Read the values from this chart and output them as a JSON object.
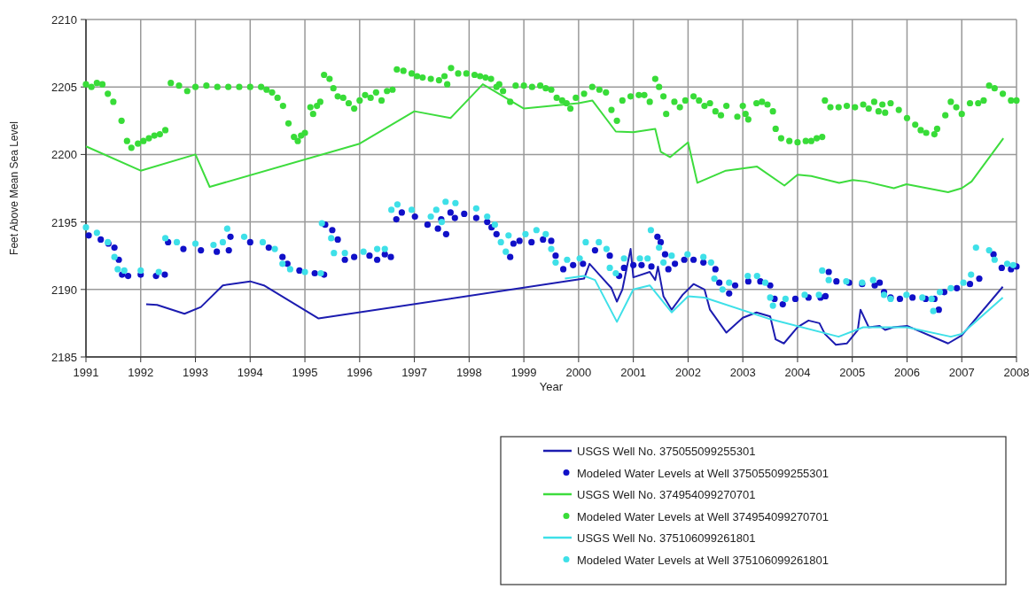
{
  "chart_data": {
    "type": "line",
    "xlabel": "Year",
    "ylabel": "Feet Above Mean Sea Level",
    "xlim": [
      1991,
      2008
    ],
    "xticks": [
      1991,
      1992,
      1993,
      1994,
      1995,
      1996,
      1997,
      1998,
      1999,
      2000,
      2001,
      2002,
      2003,
      2004,
      2005,
      2006,
      2007,
      2008
    ],
    "ylim": [
      2185,
      2210
    ],
    "yticks": [
      2185,
      2190,
      2195,
      2200,
      2205,
      2210
    ],
    "grid": true,
    "legend": "bottom",
    "series": [
      {
        "name": "USGS Well No. 375055099255301",
        "type": "line",
        "color": "#1c1cb0",
        "marker": "none",
        "x": [
          1992.1,
          1992.3,
          1992.8,
          1993.1,
          1993.5,
          1994.0,
          1994.25,
          1995.25,
          2000.1,
          2000.2,
          2000.4,
          2000.6,
          2000.7,
          2000.8,
          2000.95,
          2001.0,
          2001.3,
          2001.4,
          2001.45,
          2001.55,
          2001.7,
          2001.9,
          2002.1,
          2002.3,
          2002.4,
          2002.7,
          2003.0,
          2003.25,
          2003.5,
          2003.6,
          2003.75,
          2004.0,
          2004.2,
          2004.4,
          2004.5,
          2004.7,
          2004.9,
          2005.1,
          2005.15,
          2005.3,
          2005.5,
          2005.6,
          2005.75,
          2006.0,
          2006.75,
          2007.0,
          2007.75
        ],
        "values": [
          2188.9,
          2188.85,
          2188.2,
          2188.7,
          2190.3,
          2190.6,
          2190.3,
          2187.85,
          2190.8,
          2191.9,
          2191.0,
          2190.1,
          2189.1,
          2190.0,
          2193.0,
          2190.9,
          2191.3,
          2190.7,
          2191.7,
          2189.5,
          2188.5,
          2189.6,
          2190.4,
          2190.0,
          2188.5,
          2186.8,
          2187.9,
          2188.3,
          2188.0,
          2186.3,
          2186.0,
          2187.2,
          2187.7,
          2187.5,
          2186.7,
          2185.9,
          2186.0,
          2187.0,
          2188.5,
          2187.2,
          2187.3,
          2187.0,
          2187.2,
          2187.3,
          2186.0,
          2186.6,
          2190.2
        ]
      },
      {
        "name": "Modeled Water Levels at Well 375055099255301",
        "type": "scatter",
        "color": "#1010c8",
        "marker": "circle",
        "x": [
          1991.05,
          1991.27,
          1991.41,
          1991.52,
          1991.6,
          1991.66,
          1991.77,
          1992.0,
          1992.28,
          1992.44,
          1992.5,
          1992.78,
          1993.1,
          1993.39,
          1993.61,
          1993.64,
          1994.0,
          1994.34,
          1994.59,
          1994.68,
          1994.9,
          1995.18,
          1995.35,
          1995.37,
          1995.5,
          1995.6,
          1995.73,
          1995.9,
          1996.18,
          1996.32,
          1996.46,
          1996.57,
          1996.67,
          1996.77,
          1997.01,
          1997.24,
          1997.43,
          1997.49,
          1997.58,
          1997.66,
          1997.74,
          1997.91,
          1998.13,
          1998.33,
          1998.41,
          1998.5,
          1998.75,
          1998.81,
          1998.92,
          1999.14,
          1999.35,
          1999.5,
          1999.58,
          1999.72,
          1999.9,
          2000.08,
          2000.3,
          2000.57,
          2000.74,
          2000.83,
          2001.0,
          2001.15,
          2001.33,
          2001.44,
          2001.5,
          2001.58,
          2001.64,
          2001.76,
          2001.93,
          2002.1,
          2002.28,
          2002.5,
          2002.57,
          2002.75,
          2002.86,
          2003.1,
          2003.32,
          2003.5,
          2003.58,
          2003.73,
          2003.96,
          2004.2,
          2004.42,
          2004.51,
          2004.57,
          2004.71,
          2004.94,
          2005.18,
          2005.41,
          2005.5,
          2005.58,
          2005.7,
          2005.87,
          2006.1,
          2006.34,
          2006.5,
          2006.58,
          2006.68,
          2006.91,
          2007.15,
          2007.32,
          2007.58,
          2007.73,
          2007.9,
          2008.0
        ],
        "values": [
          2194.0,
          2193.7,
          2193.4,
          2193.1,
          2192.2,
          2191.1,
          2191.0,
          2191.1,
          2191.0,
          2191.1,
          2193.5,
          2193.0,
          2192.9,
          2192.8,
          2192.9,
          2193.9,
          2193.5,
          2193.1,
          2192.4,
          2191.9,
          2191.4,
          2191.2,
          2191.1,
          2194.8,
          2194.4,
          2193.7,
          2192.2,
          2192.4,
          2192.5,
          2192.2,
          2192.6,
          2192.4,
          2195.2,
          2195.7,
          2195.4,
          2194.8,
          2194.5,
          2195.2,
          2194.1,
          2195.7,
          2195.3,
          2195.6,
          2195.3,
          2195.0,
          2194.6,
          2194.1,
          2192.4,
          2193.4,
          2193.6,
          2193.5,
          2193.7,
          2193.6,
          2192.5,
          2191.5,
          2191.8,
          2191.9,
          2192.9,
          2192.5,
          2191.0,
          2191.6,
          2191.8,
          2191.8,
          2191.7,
          2193.9,
          2193.5,
          2192.6,
          2191.5,
          2191.9,
          2192.2,
          2192.2,
          2192.0,
          2191.5,
          2190.5,
          2189.7,
          2190.3,
          2190.6,
          2190.6,
          2190.3,
          2189.3,
          2188.9,
          2189.3,
          2189.4,
          2189.4,
          2189.5,
          2191.3,
          2190.6,
          2190.5,
          2190.4,
          2190.3,
          2190.5,
          2189.8,
          2189.4,
          2189.3,
          2189.4,
          2189.3,
          2189.3,
          2188.5,
          2189.8,
          2190.1,
          2190.4,
          2190.8,
          2192.6,
          2191.6,
          2191.5,
          2191.7
        ]
      },
      {
        "name": "USGS Well No. 374954099270701",
        "type": "line",
        "color": "#3ddc3d",
        "marker": "none",
        "x": [
          1991.0,
          1992.0,
          1993.0,
          1993.26,
          1996.0,
          1997.0,
          1997.66,
          1998.25,
          1999.0,
          2000.0,
          2000.25,
          2000.68,
          2001.0,
          2001.4,
          2001.5,
          2001.67,
          2002.0,
          2002.17,
          2002.69,
          2003.26,
          2003.76,
          2004.0,
          2004.25,
          2004.76,
          2005.01,
          2005.24,
          2005.76,
          2005.99,
          2006.75,
          2007.0,
          2007.18,
          2007.76
        ],
        "values": [
          2200.6,
          2198.8,
          2200.0,
          2197.6,
          2200.8,
          2203.2,
          2202.7,
          2205.2,
          2203.4,
          2203.8,
          2204.0,
          2201.7,
          2201.65,
          2201.9,
          2200.2,
          2199.8,
          2200.9,
          2197.9,
          2198.8,
          2199.1,
          2197.7,
          2198.5,
          2198.4,
          2197.9,
          2198.1,
          2198.0,
          2197.5,
          2197.8,
          2197.2,
          2197.5,
          2198.0,
          2201.2
        ]
      },
      {
        "name": "Modeled Water Levels at Well 374954099270701",
        "type": "scatter",
        "color": "#38dc38",
        "marker": "circle",
        "x": [
          1991.0,
          1991.1,
          1991.2,
          1991.3,
          1991.4,
          1991.5,
          1991.65,
          1991.75,
          1991.83,
          1991.95,
          1992.05,
          1992.15,
          1992.25,
          1992.35,
          1992.45,
          1992.55,
          1992.7,
          1992.85,
          1993.0,
          1993.2,
          1993.4,
          1993.6,
          1993.8,
          1994.0,
          1994.2,
          1994.3,
          1994.4,
          1994.5,
          1994.6,
          1994.7,
          1994.8,
          1994.87,
          1994.93,
          1995.0,
          1995.1,
          1995.15,
          1995.22,
          1995.28,
          1995.35,
          1995.45,
          1995.52,
          1995.6,
          1995.7,
          1995.8,
          1995.9,
          1996.0,
          1996.1,
          1996.2,
          1996.3,
          1996.4,
          1996.5,
          1996.6,
          1996.68,
          1996.8,
          1996.95,
          1997.05,
          1997.15,
          1997.3,
          1997.45,
          1997.55,
          1997.6,
          1997.67,
          1997.8,
          1997.95,
          1998.1,
          1998.2,
          1998.3,
          1998.4,
          1998.5,
          1998.55,
          1998.62,
          1998.75,
          1998.85,
          1999.0,
          1999.15,
          1999.3,
          1999.4,
          1999.5,
          1999.6,
          1999.7,
          1999.78,
          1999.85,
          1999.95,
          2000.1,
          2000.25,
          2000.38,
          2000.5,
          2000.6,
          2000.7,
          2000.8,
          2000.95,
          2001.1,
          2001.2,
          2001.3,
          2001.4,
          2001.47,
          2001.55,
          2001.6,
          2001.75,
          2001.85,
          2001.95,
          2002.1,
          2002.2,
          2002.3,
          2002.4,
          2002.5,
          2002.6,
          2002.7,
          2002.9,
          2003.0,
          2003.05,
          2003.1,
          2003.25,
          2003.35,
          2003.45,
          2003.55,
          2003.6,
          2003.7,
          2003.85,
          2004.0,
          2004.15,
          2004.25,
          2004.35,
          2004.45,
          2004.5,
          2004.6,
          2004.75,
          2004.9,
          2005.05,
          2005.2,
          2005.3,
          2005.4,
          2005.48,
          2005.55,
          2005.6,
          2005.7,
          2005.85,
          2006.0,
          2006.15,
          2006.25,
          2006.35,
          2006.5,
          2006.55,
          2006.7,
          2006.8,
          2006.9,
          2007.0,
          2007.15,
          2007.3,
          2007.4,
          2007.5,
          2007.6,
          2007.75,
          2007.9,
          2008.0
        ],
        "values": [
          2205.2,
          2205.0,
          2205.3,
          2205.2,
          2204.5,
          2203.9,
          2202.5,
          2201.0,
          2200.5,
          2200.8,
          2201.0,
          2201.2,
          2201.4,
          2201.5,
          2201.8,
          2205.3,
          2205.1,
          2204.7,
          2205.0,
          2205.1,
          2205.0,
          2205.0,
          2205.0,
          2205.0,
          2205.0,
          2204.8,
          2204.6,
          2204.2,
          2203.6,
          2202.3,
          2201.3,
          2201.0,
          2201.4,
          2201.6,
          2203.5,
          2203.0,
          2203.6,
          2203.9,
          2205.9,
          2205.6,
          2204.9,
          2204.3,
          2204.2,
          2203.8,
          2203.4,
          2204.0,
          2204.4,
          2204.2,
          2204.6,
          2204.0,
          2204.7,
          2204.8,
          2206.3,
          2206.2,
          2206.0,
          2205.8,
          2205.7,
          2205.6,
          2205.5,
          2205.8,
          2205.2,
          2206.4,
          2206.0,
          2206.0,
          2205.9,
          2205.8,
          2205.7,
          2205.6,
          2205.0,
          2205.2,
          2204.7,
          2203.9,
          2205.1,
          2205.1,
          2205.0,
          2205.1,
          2204.9,
          2204.8,
          2204.2,
          2204.0,
          2203.8,
          2203.4,
          2204.2,
          2204.5,
          2205.0,
          2204.8,
          2204.6,
          2203.3,
          2202.5,
          2204.0,
          2204.3,
          2204.4,
          2204.4,
          2203.9,
          2205.6,
          2205.0,
          2204.3,
          2203.0,
          2203.9,
          2203.5,
          2204.0,
          2204.3,
          2204.0,
          2203.6,
          2203.8,
          2203.2,
          2202.9,
          2203.6,
          2202.8,
          2203.6,
          2203.0,
          2202.6,
          2203.8,
          2203.9,
          2203.7,
          2203.2,
          2201.9,
          2201.2,
          2201.0,
          2200.9,
          2201.0,
          2201.0,
          2201.2,
          2201.3,
          2204.0,
          2203.5,
          2203.5,
          2203.6,
          2203.5,
          2203.7,
          2203.4,
          2203.9,
          2203.2,
          2203.7,
          2203.1,
          2203.8,
          2203.3,
          2202.7,
          2202.2,
          2201.8,
          2201.6,
          2201.5,
          2201.9,
          2202.9,
          2203.9,
          2203.5,
          2203.0,
          2203.8,
          2203.8,
          2204.0,
          2205.1,
          2204.9,
          2204.5,
          2204.0,
          2204.0
        ]
      },
      {
        "name": "USGS Well No. 375106099261801",
        "type": "line",
        "color": "#3ee0e8",
        "marker": "none",
        "x": [
          1999.75,
          2000.1,
          2000.3,
          2000.7,
          2001.0,
          2001.3,
          2001.7,
          2002.0,
          2002.3,
          2003.5,
          2004.75,
          2005.2,
          2006.0,
          2006.8,
          2007.0,
          2007.75
        ],
        "values": [
          2190.8,
          2191.0,
          2190.7,
          2187.6,
          2190.0,
          2190.3,
          2188.3,
          2189.5,
          2189.4,
          2187.8,
          2186.5,
          2187.2,
          2187.2,
          2186.5,
          2186.7,
          2189.4
        ]
      },
      {
        "name": "Modeled Water Levels at Well 375106099261801",
        "type": "scatter",
        "color": "#3ee0e8",
        "marker": "circle",
        "x": [
          1991.0,
          1991.2,
          1991.4,
          1991.52,
          1991.58,
          1991.7,
          1992.0,
          1992.33,
          1992.45,
          1992.66,
          1993.0,
          1993.33,
          1993.5,
          1993.58,
          1993.89,
          1994.23,
          1994.45,
          1994.59,
          1994.73,
          1995.0,
          1995.29,
          1995.31,
          1995.48,
          1995.53,
          1995.73,
          1996.07,
          1996.32,
          1996.46,
          1996.58,
          1996.69,
          1996.95,
          1997.3,
          1997.4,
          1997.5,
          1997.57,
          1997.75,
          1998.13,
          1998.33,
          1998.47,
          1998.58,
          1998.67,
          1998.72,
          1999.03,
          1999.23,
          1999.4,
          1999.5,
          1999.58,
          1999.79,
          2000.02,
          2000.13,
          2000.37,
          2000.51,
          2000.57,
          2000.68,
          2000.83,
          2001.12,
          2001.26,
          2001.32,
          2001.47,
          2001.55,
          2001.7,
          2001.99,
          2002.28,
          2002.42,
          2002.48,
          2002.63,
          2002.75,
          2003.09,
          2003.26,
          2003.41,
          2003.5,
          2003.55,
          2003.78,
          2004.13,
          2004.39,
          2004.45,
          2004.57,
          2004.89,
          2005.18,
          2005.38,
          2005.58,
          2005.7,
          2005.99,
          2006.28,
          2006.45,
          2006.48,
          2006.6,
          2006.8,
          2007.03,
          2007.17,
          2007.26,
          2007.5,
          2007.6,
          2007.83,
          2007.94
        ],
        "values": [
          2194.6,
          2194.2,
          2193.5,
          2192.4,
          2191.5,
          2191.4,
          2191.4,
          2191.3,
          2193.8,
          2193.5,
          2193.4,
          2193.3,
          2193.5,
          2194.5,
          2193.9,
          2193.5,
          2193.0,
          2191.9,
          2191.5,
          2191.3,
          2191.2,
          2194.9,
          2193.8,
          2192.7,
          2192.7,
          2192.8,
          2193.0,
          2193.0,
          2195.9,
          2196.3,
          2195.9,
          2195.4,
          2195.9,
          2195.0,
          2196.5,
          2196.4,
          2196.0,
          2195.4,
          2194.8,
          2193.5,
          2192.8,
          2194.0,
          2194.1,
          2194.4,
          2194.1,
          2193.0,
          2192.0,
          2192.2,
          2192.3,
          2193.5,
          2193.5,
          2193.0,
          2191.6,
          2191.2,
          2192.3,
          2192.3,
          2192.3,
          2194.4,
          2193.1,
          2192.0,
          2192.5,
          2192.6,
          2192.4,
          2192.0,
          2190.8,
          2190.0,
          2190.5,
          2191.0,
          2191.0,
          2190.5,
          2189.4,
          2188.8,
          2189.3,
          2189.6,
          2189.6,
          2191.4,
          2190.7,
          2190.6,
          2190.5,
          2190.7,
          2189.6,
          2189.3,
          2189.6,
          2189.4,
          2189.3,
          2188.4,
          2189.8,
          2190.1,
          2190.5,
          2191.1,
          2193.1,
          2192.9,
          2192.2,
          2191.9,
          2191.8
        ]
      }
    ]
  }
}
